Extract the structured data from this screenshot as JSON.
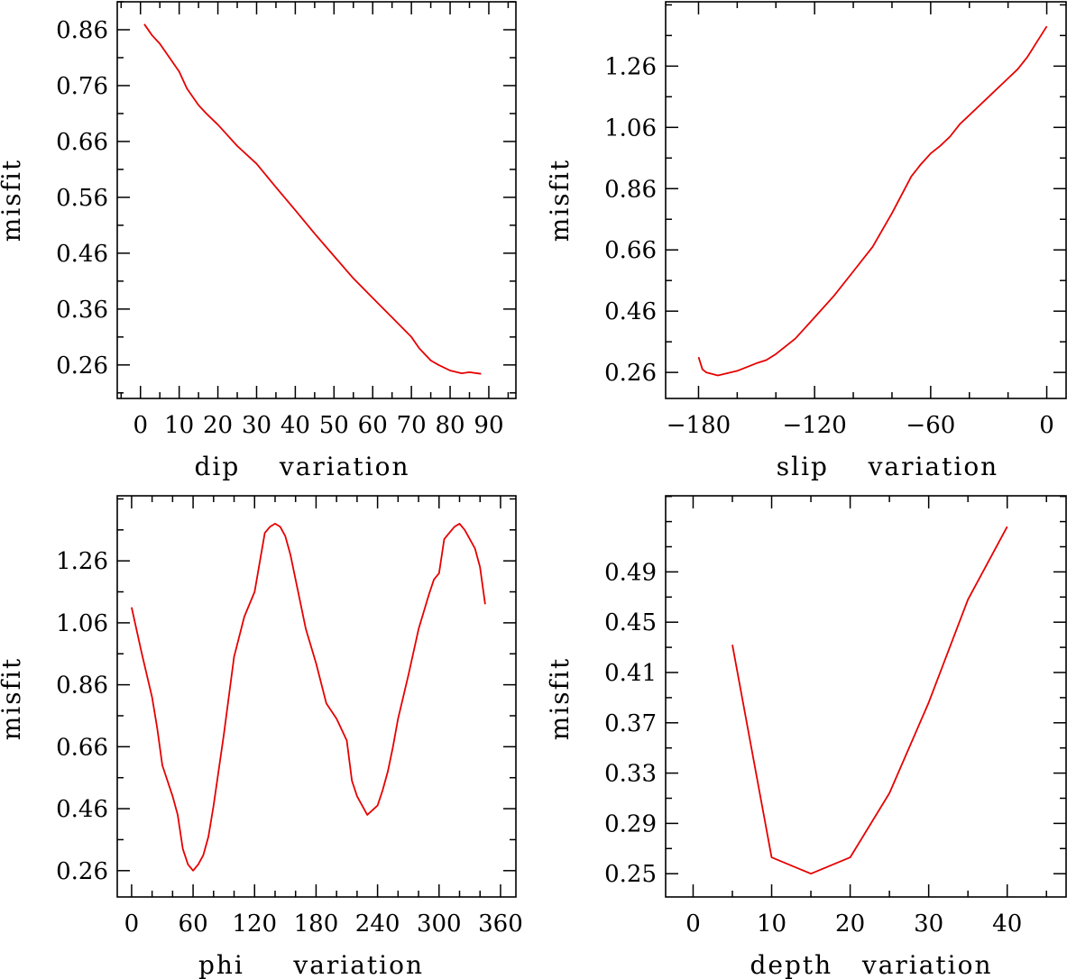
{
  "colors": {
    "series": "#e60000",
    "axes": "#000000",
    "background": "#ffffff"
  },
  "chart_data": [
    {
      "type": "line",
      "title": "",
      "xlabel": "dip    variation",
      "ylabel": "misfit",
      "xlim": [
        -6,
        97
      ],
      "ylim": [
        0.2,
        0.91
      ],
      "xticks": [
        0,
        10,
        20,
        30,
        40,
        50,
        60,
        70,
        80,
        90
      ],
      "xtick_labels": [
        "0",
        "10",
        "20",
        "30",
        "40",
        "50",
        "60",
        "70",
        "80",
        "90"
      ],
      "xminor_step": 5,
      "yticks": [
        0.26,
        0.36,
        0.46,
        0.56,
        0.66,
        0.76,
        0.86
      ],
      "ytick_labels": [
        "0.26",
        "0.36",
        "0.46",
        "0.56",
        "0.66",
        "0.76",
        "0.86"
      ],
      "yminor_step": 0.05,
      "grid": false,
      "series": [
        {
          "name": "dip",
          "x": [
            1,
            3,
            5,
            7,
            10,
            12,
            15,
            17,
            20,
            25,
            30,
            35,
            40,
            45,
            50,
            55,
            60,
            65,
            70,
            72,
            75,
            77,
            80,
            83,
            85,
            88
          ],
          "y": [
            0.87,
            0.85,
            0.835,
            0.815,
            0.785,
            0.755,
            0.725,
            0.71,
            0.69,
            0.652,
            0.62,
            0.578,
            0.537,
            0.495,
            0.455,
            0.415,
            0.38,
            0.345,
            0.31,
            0.29,
            0.268,
            0.26,
            0.25,
            0.245,
            0.247,
            0.244
          ]
        }
      ]
    },
    {
      "type": "line",
      "title": "",
      "xlabel": "slip    variation",
      "ylabel": "misfit",
      "xlim": [
        -197,
        10
      ],
      "ylim": [
        0.175,
        1.47
      ],
      "xticks": [
        -180,
        -120,
        -60,
        0
      ],
      "xtick_labels": [
        "−180",
        "−120",
        "−60",
        "0"
      ],
      "xminor_step": 20,
      "yticks": [
        0.26,
        0.46,
        0.66,
        0.86,
        1.06,
        1.26
      ],
      "ytick_labels": [
        "0.26",
        "0.46",
        "0.66",
        "0.86",
        "1.06",
        "1.26"
      ],
      "yminor_step": 0.1,
      "grid": false,
      "series": [
        {
          "name": "slip",
          "x": [
            -180,
            -178,
            -176,
            -170,
            -160,
            -150,
            -145,
            -140,
            -130,
            -120,
            -110,
            -100,
            -90,
            -80,
            -70,
            -65,
            -60,
            -55,
            -50,
            -45,
            -40,
            -35,
            -30,
            -25,
            -20,
            -15,
            -10,
            -5,
            0
          ],
          "y": [
            0.31,
            0.27,
            0.26,
            0.25,
            0.265,
            0.29,
            0.3,
            0.32,
            0.37,
            0.44,
            0.51,
            0.59,
            0.67,
            0.78,
            0.9,
            0.94,
            0.975,
            1.0,
            1.03,
            1.07,
            1.1,
            1.13,
            1.16,
            1.19,
            1.22,
            1.25,
            1.29,
            1.34,
            1.39
          ]
        }
      ]
    },
    {
      "type": "line",
      "title": "",
      "xlabel": "phi     variation",
      "ylabel": "misfit",
      "xlim": [
        -14,
        375
      ],
      "ylim": [
        0.175,
        1.47
      ],
      "xticks": [
        0,
        60,
        120,
        180,
        240,
        300,
        360
      ],
      "xtick_labels": [
        "0",
        "60",
        "120",
        "180",
        "240",
        "300",
        "360"
      ],
      "xminor_step": 20,
      "yticks": [
        0.26,
        0.46,
        0.66,
        0.86,
        1.06,
        1.26
      ],
      "ytick_labels": [
        "0.26",
        "0.46",
        "0.66",
        "0.86",
        "1.06",
        "1.26"
      ],
      "yminor_step": 0.1,
      "grid": false,
      "series": [
        {
          "name": "phi",
          "x": [
            0,
            10,
            20,
            25,
            30,
            40,
            45,
            50,
            55,
            60,
            65,
            70,
            75,
            80,
            90,
            100,
            110,
            120,
            130,
            135,
            140,
            145,
            150,
            155,
            160,
            170,
            180,
            190,
            200,
            210,
            215,
            220,
            230,
            240,
            245,
            250,
            255,
            260,
            270,
            280,
            290,
            295,
            300,
            305,
            310,
            315,
            320,
            325,
            330,
            335,
            340,
            345
          ],
          "y": [
            1.11,
            0.96,
            0.82,
            0.72,
            0.6,
            0.5,
            0.44,
            0.33,
            0.28,
            0.26,
            0.28,
            0.31,
            0.37,
            0.47,
            0.7,
            0.95,
            1.08,
            1.16,
            1.35,
            1.37,
            1.38,
            1.37,
            1.34,
            1.28,
            1.2,
            1.04,
            0.93,
            0.8,
            0.75,
            0.68,
            0.55,
            0.5,
            0.44,
            0.47,
            0.52,
            0.58,
            0.66,
            0.75,
            0.89,
            1.04,
            1.15,
            1.2,
            1.22,
            1.33,
            1.35,
            1.37,
            1.38,
            1.36,
            1.33,
            1.3,
            1.24,
            1.12
          ]
        }
      ]
    },
    {
      "type": "line",
      "title": "",
      "xlabel": "depth   variation",
      "ylabel": "misfit",
      "xlim": [
        -3.5,
        47.5
      ],
      "ylim": [
        0.2315,
        0.5505
      ],
      "xticks": [
        0,
        10,
        20,
        30,
        40
      ],
      "xtick_labels": [
        "0",
        "10",
        "20",
        "30",
        "40"
      ],
      "xminor_step": 5,
      "yticks": [
        0.25,
        0.29,
        0.33,
        0.37,
        0.41,
        0.45,
        0.49
      ],
      "ytick_labels": [
        "0.25",
        "0.29",
        "0.33",
        "0.37",
        "0.41",
        "0.45",
        "0.49"
      ],
      "yminor_step": 0.02,
      "grid": false,
      "series": [
        {
          "name": "depth",
          "x": [
            5,
            10,
            15,
            20,
            25,
            30,
            35,
            40
          ],
          "y": [
            0.432,
            0.263,
            0.25,
            0.263,
            0.314,
            0.386,
            0.468,
            0.526
          ]
        }
      ]
    }
  ]
}
